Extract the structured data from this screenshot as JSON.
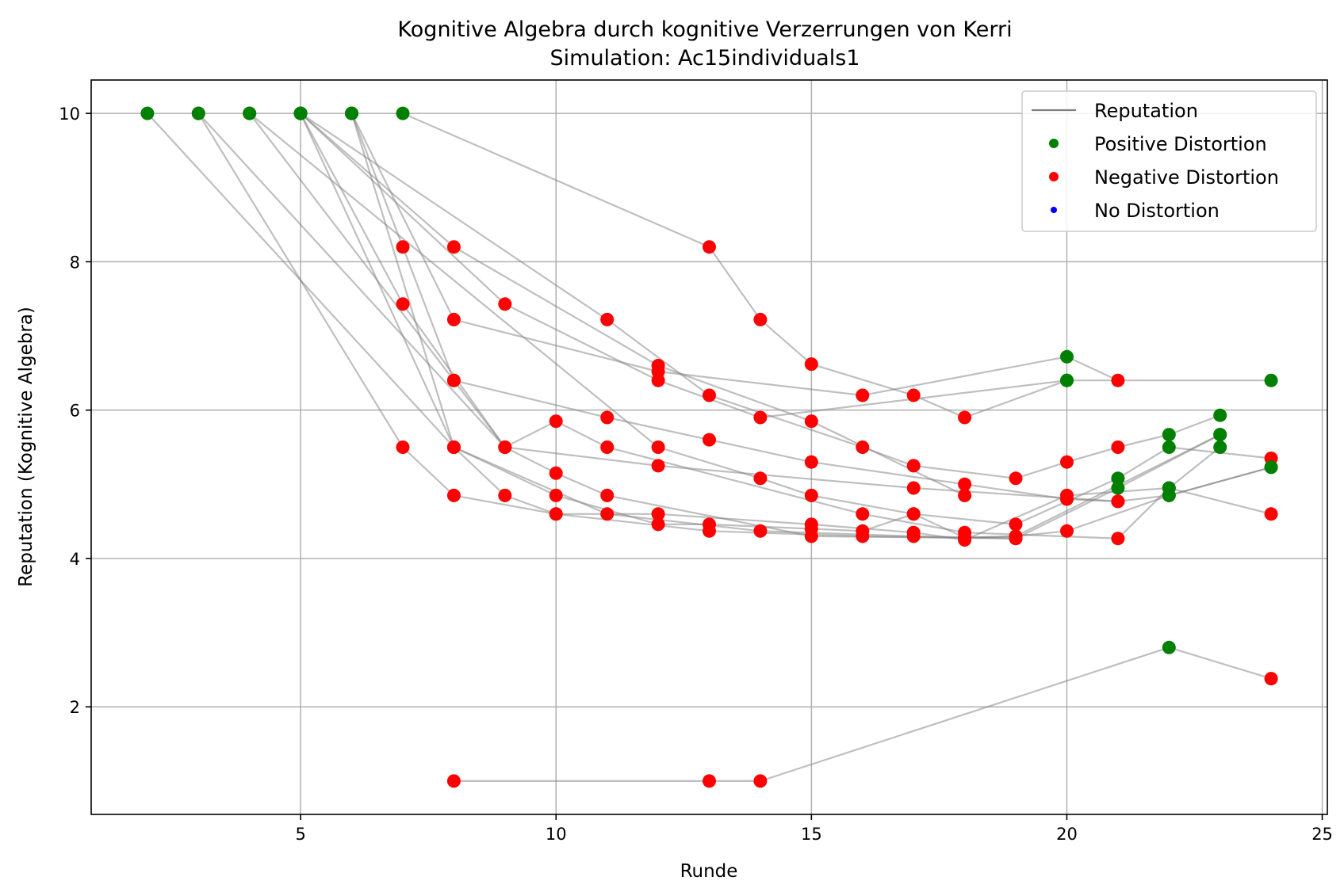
{
  "chart_data": {
    "type": "line",
    "title": "Kognitive Algebra durch kognitive Verzerrungen von Kerri",
    "subtitle": "Simulation: Ac15individuals1",
    "xlabel": "Runde",
    "ylabel": "Reputation (Kognitive Algebra)",
    "xlim": [
      0.9,
      25.1
    ],
    "ylim": [
      0.55,
      10.45
    ],
    "xticks": [
      5,
      10,
      15,
      20,
      25
    ],
    "yticks": [
      2,
      4,
      6,
      8,
      10
    ],
    "grid": true,
    "legend_position": "top-right",
    "legend": [
      {
        "label": "Reputation",
        "kind": "line",
        "color": "#808080"
      },
      {
        "label": "Positive Distortion",
        "kind": "marker",
        "color": "#008000"
      },
      {
        "label": "Negative Distortion",
        "kind": "marker",
        "color": "#ff0000"
      },
      {
        "label": "No Distortion",
        "kind": "marker",
        "color": "#0000ff"
      }
    ],
    "marker_colors": {
      "positive": "#008000",
      "negative": "#ff0000",
      "none": "#0000ff"
    },
    "line_color": "#808080",
    "series": [
      {
        "points": [
          [
            2,
            10,
            "pos"
          ],
          [
            8,
            5.5,
            "neg"
          ],
          [
            11,
            4.6,
            "neg"
          ],
          [
            14,
            4.37,
            "neg"
          ],
          [
            17,
            4.3,
            "neg"
          ],
          [
            19,
            4.27,
            "neg"
          ]
        ]
      },
      {
        "points": [
          [
            3,
            10,
            "pos"
          ],
          [
            7,
            5.5,
            "neg"
          ],
          [
            8,
            4.85,
            "neg"
          ],
          [
            10,
            4.6,
            "neg"
          ],
          [
            12,
            4.6,
            "neg"
          ],
          [
            15,
            4.46,
            "neg"
          ],
          [
            17,
            4.35,
            "neg"
          ],
          [
            18,
            4.25,
            "neg"
          ],
          [
            20,
            4.85,
            "neg"
          ],
          [
            22,
            4.95,
            "pos"
          ],
          [
            24,
            4.6,
            "neg"
          ]
        ]
      },
      {
        "points": [
          [
            3,
            10,
            "pos"
          ],
          [
            9,
            5.5,
            "neg"
          ],
          [
            12,
            5.25,
            "neg"
          ],
          [
            17,
            4.95,
            "neg"
          ],
          [
            21,
            4.77,
            "neg"
          ],
          [
            22,
            4.85,
            "pos"
          ],
          [
            24,
            5.23,
            "pos"
          ]
        ]
      },
      {
        "points": [
          [
            4,
            10,
            "pos"
          ],
          [
            8,
            6.4,
            "neg"
          ],
          [
            9,
            5.5,
            "neg"
          ],
          [
            10,
            5.85,
            "neg"
          ],
          [
            11,
            5.5,
            "neg"
          ],
          [
            16,
            4.6,
            "neg"
          ],
          [
            18,
            4.35,
            "neg"
          ],
          [
            21,
            4.27,
            "neg"
          ],
          [
            22,
            4.95,
            "pos"
          ],
          [
            23,
            5.5,
            "pos"
          ]
        ]
      },
      {
        "points": [
          [
            4,
            10,
            "pos"
          ],
          [
            12,
            5.5,
            "neg"
          ],
          [
            14,
            5.08,
            "neg"
          ],
          [
            15,
            4.85,
            "neg"
          ],
          [
            17,
            4.6,
            "neg"
          ],
          [
            19,
            4.46,
            "neg"
          ],
          [
            21,
            5.08,
            "pos"
          ],
          [
            22,
            5.5,
            "pos"
          ],
          [
            24,
            5.35,
            "neg"
          ]
        ]
      },
      {
        "points": [
          [
            5,
            10,
            "pos"
          ],
          [
            8,
            5.5,
            "neg"
          ],
          [
            9,
            4.85,
            "neg"
          ],
          [
            10,
            4.6,
            "neg"
          ],
          [
            13,
            4.37,
            "neg"
          ],
          [
            16,
            4.3,
            "neg"
          ],
          [
            18,
            4.28,
            "neg"
          ],
          [
            19,
            4.3,
            "neg"
          ],
          [
            20,
            4.37,
            "neg"
          ],
          [
            22,
            4.85,
            "pos"
          ],
          [
            24,
            5.23,
            "pos"
          ]
        ]
      },
      {
        "points": [
          [
            5,
            10,
            "pos"
          ],
          [
            8,
            8.2,
            "neg"
          ],
          [
            12,
            6.6,
            "neg"
          ],
          [
            15,
            5.85,
            "neg"
          ],
          [
            18,
            4.85,
            "neg"
          ]
        ]
      },
      {
        "points": [
          [
            5,
            10,
            "pos"
          ],
          [
            9,
            7.43,
            "neg"
          ],
          [
            12,
            6.4,
            "neg"
          ],
          [
            14,
            5.9,
            "neg"
          ],
          [
            20,
            6.4,
            "pos"
          ],
          [
            24,
            6.4,
            "pos"
          ]
        ]
      },
      {
        "points": [
          [
            5,
            10,
            "pos"
          ],
          [
            7,
            7.43,
            "neg"
          ],
          [
            9,
            5.5,
            "neg"
          ],
          [
            10,
            5.15,
            "neg"
          ],
          [
            11,
            4.85,
            "neg"
          ],
          [
            15,
            4.3,
            "neg"
          ],
          [
            19,
            4.27,
            "neg"
          ],
          [
            21,
            4.95,
            "pos"
          ],
          [
            23,
            5.67,
            "pos"
          ]
        ]
      },
      {
        "points": [
          [
            5,
            10,
            "pos"
          ],
          [
            11,
            7.22,
            "neg"
          ],
          [
            13,
            6.2,
            "neg"
          ],
          [
            16,
            5.5,
            "neg"
          ],
          [
            17,
            5.25,
            "neg"
          ],
          [
            19,
            5.08,
            "neg"
          ],
          [
            20,
            5.3,
            "neg"
          ],
          [
            21,
            5.5,
            "neg"
          ],
          [
            22,
            5.67,
            "pos"
          ],
          [
            23,
            5.93,
            "pos"
          ]
        ]
      },
      {
        "points": [
          [
            6,
            10,
            "pos"
          ],
          [
            8,
            7.22,
            "neg"
          ],
          [
            12,
            6.52,
            "neg"
          ],
          [
            16,
            6.2,
            "neg"
          ],
          [
            20,
            6.72,
            "pos"
          ],
          [
            21,
            6.4,
            "neg"
          ]
        ]
      },
      {
        "points": [
          [
            6,
            10,
            "pos"
          ],
          [
            7,
            8.2,
            "neg"
          ],
          [
            8,
            6.4,
            "neg"
          ],
          [
            11,
            5.9,
            "neg"
          ],
          [
            13,
            5.6,
            "neg"
          ],
          [
            15,
            5.3,
            "neg"
          ],
          [
            18,
            5.0,
            "neg"
          ],
          [
            20,
            4.8,
            "neg"
          ],
          [
            21,
            4.77,
            "neg"
          ]
        ]
      },
      {
        "points": [
          [
            6,
            10,
            "pos"
          ],
          [
            8,
            5.5,
            "neg"
          ],
          [
            10,
            4.85,
            "neg"
          ],
          [
            12,
            4.46,
            "neg"
          ],
          [
            13,
            4.46,
            "neg"
          ],
          [
            15,
            4.4,
            "neg"
          ],
          [
            16,
            4.37,
            "neg"
          ],
          [
            17,
            4.6,
            "neg"
          ],
          [
            18,
            4.28,
            "neg"
          ],
          [
            19,
            4.3,
            "neg"
          ],
          [
            23,
            5.67,
            "pos"
          ]
        ]
      },
      {
        "points": [
          [
            7,
            10,
            "pos"
          ],
          [
            13,
            8.2,
            "neg"
          ],
          [
            14,
            7.22,
            "neg"
          ],
          [
            15,
            6.62,
            "neg"
          ],
          [
            17,
            6.2,
            "neg"
          ],
          [
            18,
            5.9,
            "neg"
          ],
          [
            20,
            6.4,
            "pos"
          ]
        ]
      },
      {
        "points": [
          [
            8,
            1,
            "neg"
          ],
          [
            13,
            1,
            "neg"
          ],
          [
            14,
            1,
            "neg"
          ],
          [
            22,
            2.8,
            "pos"
          ],
          [
            24,
            2.38,
            "neg"
          ]
        ]
      }
    ]
  }
}
